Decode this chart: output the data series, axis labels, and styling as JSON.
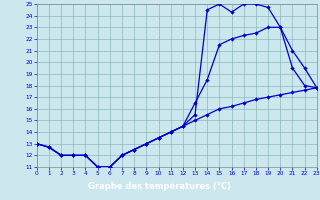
{
  "bg_color": "#cce8ee",
  "line_color": "#0000cc",
  "grid_color": "#88bbbb",
  "xlabel": "Graphe des températures (°C)",
  "xlabel_bg": "#000077",
  "xlabel_fg": "#ffffff",
  "xlim": [
    0,
    23
  ],
  "ylim": [
    11,
    25
  ],
  "xticks": [
    0,
    1,
    2,
    3,
    4,
    5,
    6,
    7,
    8,
    9,
    10,
    11,
    12,
    13,
    14,
    15,
    16,
    17,
    18,
    19,
    20,
    21,
    22,
    23
  ],
  "yticks": [
    11,
    12,
    13,
    14,
    15,
    16,
    17,
    18,
    19,
    20,
    21,
    22,
    23,
    24,
    25
  ],
  "hours": [
    0,
    1,
    2,
    3,
    4,
    5,
    6,
    7,
    8,
    9,
    10,
    11,
    12,
    13,
    14,
    15,
    16,
    17,
    18,
    19,
    20,
    21,
    22,
    23
  ],
  "temp_min": [
    13,
    12.7,
    12,
    12,
    12,
    11,
    11,
    12,
    12.5,
    13,
    13.5,
    14,
    14.5,
    15,
    15.5,
    16,
    16.2,
    16.5,
    16.8,
    17,
    17.2,
    17.4,
    17.6,
    17.8
  ],
  "temp_max": [
    13,
    12.7,
    12,
    12,
    12,
    11,
    11,
    12,
    12.5,
    13,
    13.5,
    14,
    14.5,
    15.5,
    24.5,
    25,
    24.3,
    25,
    25,
    24.7,
    23.0,
    19.5,
    18.0,
    17.8
  ],
  "temp_cur": [
    13,
    12.7,
    12,
    12,
    12,
    11,
    11,
    12,
    12.5,
    13,
    13.5,
    14,
    14.5,
    16.5,
    18.5,
    21.5,
    22.0,
    22.3,
    22.5,
    23.0,
    23.0,
    21.0,
    19.5,
    17.8
  ]
}
